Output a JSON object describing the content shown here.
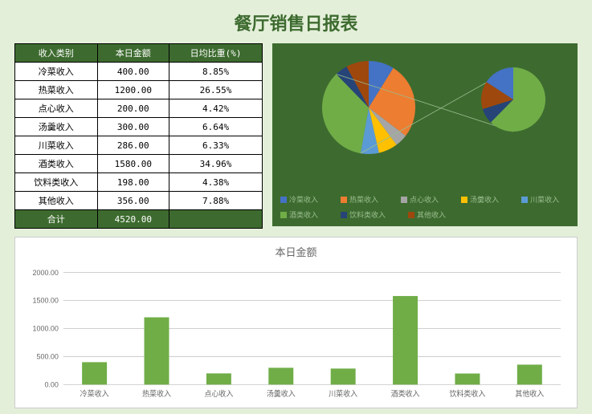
{
  "title": "餐厅销售日报表",
  "table": {
    "columns": [
      "收入类别",
      "本日金额",
      "日均比重(%)"
    ],
    "rows": [
      [
        "冷菜收入",
        "400.00",
        "8.85%"
      ],
      [
        "热菜收入",
        "1200.00",
        "26.55%"
      ],
      [
        "点心收入",
        "200.00",
        "4.42%"
      ],
      [
        "汤羹收入",
        "300.00",
        "6.64%"
      ],
      [
        "川菜收入",
        "286.00",
        "6.33%"
      ],
      [
        "酒类收入",
        "1580.00",
        "34.96%"
      ],
      [
        "饮料类收入",
        "198.00",
        "4.38%"
      ],
      [
        "其他收入",
        "356.00",
        "7.88%"
      ]
    ],
    "total_label": "合计",
    "total_value": "4520.00"
  },
  "pie_chart": {
    "type": "pie",
    "background_color": "#3d6b2f",
    "categories": [
      "冷菜收入",
      "热菜收入",
      "点心收入",
      "汤羹收入",
      "川菜收入",
      "酒类收入",
      "饮料类收入",
      "其他收入"
    ],
    "values": [
      400,
      1200,
      200,
      300,
      286,
      1580,
      198,
      356
    ],
    "colors": [
      "#4472c4",
      "#ed7d31",
      "#a5a5a5",
      "#ffc000",
      "#5b9bd5",
      "#70ad47",
      "#264478",
      "#9e480e"
    ],
    "main_center": [
      120,
      80
    ],
    "main_radius": 58,
    "mini_center": [
      300,
      70
    ],
    "mini_radius": 40,
    "mini_slice_index": 5,
    "mini_detail_colors": [
      "#70ad47",
      "#264478",
      "#9e480e",
      "#4472c4"
    ],
    "mini_detail_values": [
      1580,
      198,
      356,
      400
    ]
  },
  "bar_chart": {
    "type": "bar",
    "title": "本日金额",
    "categories": [
      "冷菜收入",
      "热菜收入",
      "点心收入",
      "汤羹收入",
      "川菜收入",
      "酒类收入",
      "饮料类收入",
      "其他收入"
    ],
    "values": [
      400,
      1200,
      200,
      300,
      286,
      1580,
      198,
      356
    ],
    "bar_color": "#70ad47",
    "background_color": "#ffffff",
    "grid_color": "#d0d0d0",
    "ylim": [
      0,
      2000
    ],
    "ytick_step": 500,
    "label_fontsize": 9,
    "bar_width": 0.4
  }
}
